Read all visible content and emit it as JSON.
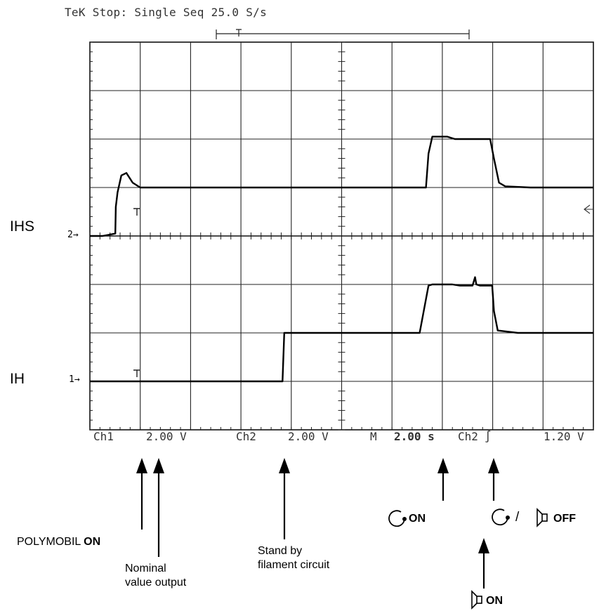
{
  "header": {
    "text": "TeK Stop: Single Seq  25.0 S/s"
  },
  "channels": {
    "ihs_label": "IHS",
    "ih_label": "IH",
    "ch2_marker": "2→",
    "ch1_marker": "1→"
  },
  "footer": {
    "ch1": "Ch1",
    "ch1_scale": "2.00 V",
    "ch2": "Ch2",
    "ch2_scale": "2.00 V",
    "m": "M",
    "timebase": "2.00 s",
    "trig_ch": "Ch2",
    "trig_symbol": "∫",
    "trig_level": "1.20 V"
  },
  "annotations": {
    "polymobil_pre": "POLYMOBIL ",
    "polymobil_on": "ON",
    "nominal_l1": "Nominal",
    "nominal_l2": "value output",
    "standby_l1": "Stand by",
    "standby_l2": "filament circuit",
    "rotation_on": "ON",
    "slash": "/",
    "off": "OFF",
    "speaker_on": "ON"
  },
  "icons": [
    "rotation-icon",
    "speaker-icon",
    "up-arrow-icon"
  ],
  "chart_data": {
    "type": "line",
    "title": "",
    "xlabel": "",
    "ylabel": "",
    "grid": true,
    "xlim": [
      0,
      20
    ],
    "x_unit": "s",
    "ylim": [
      -8,
      8
    ],
    "series": [
      {
        "name": "IHS",
        "x": [
          0,
          0.5,
          1.01,
          1.03,
          1.1,
          1.25,
          1.45,
          1.7,
          2.0,
          2.4,
          6.0,
          13.0,
          13.35,
          13.45,
          13.6,
          14.2,
          14.5,
          15.5,
          15.9,
          16.05,
          16.25,
          16.5,
          17.5,
          20.0
        ],
        "y": [
          0,
          0,
          0.1,
          1.2,
          1.8,
          2.5,
          2.6,
          2.2,
          2.0,
          2.0,
          2.0,
          2.0,
          2.0,
          3.4,
          4.1,
          4.1,
          4.0,
          4.0,
          4.0,
          3.2,
          2.2,
          2.05,
          2.0,
          2.0
        ]
      },
      {
        "name": "IH",
        "x": [
          0,
          3.0,
          7.65,
          7.72,
          8.0,
          12.0,
          13.1,
          13.45,
          13.6,
          14.4,
          14.7,
          15.2,
          15.3,
          15.35,
          15.5,
          15.98,
          16.05,
          16.2,
          17.0,
          20.0
        ],
        "y": [
          -6.0,
          -6.0,
          -6.0,
          -4.0,
          -4.0,
          -4.0,
          -4.0,
          -2.05,
          -2.0,
          -2.0,
          -2.05,
          -2.05,
          -1.7,
          -2.0,
          -2.05,
          -2.05,
          -3.1,
          -3.9,
          -4.0,
          -4.0
        ]
      }
    ]
  }
}
